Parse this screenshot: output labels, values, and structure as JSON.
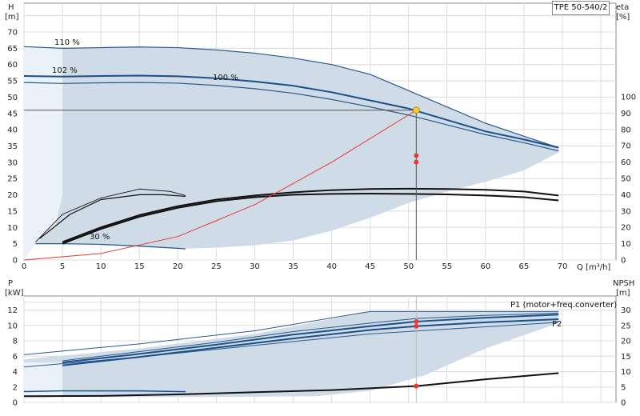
{
  "chart_data": [
    {
      "type": "line",
      "title": "TPE 50-540/2",
      "xlabel": "Q [m³/h]",
      "ylabel_left": "H",
      "ylabel_left_unit": "[m]",
      "ylabel_right": "eta",
      "ylabel_right_unit": "[%]",
      "xlim": [
        0,
        70
      ],
      "ylim_left": [
        0,
        75
      ],
      "ylim_right": [
        0,
        100
      ],
      "x_ticks": [
        0,
        5,
        10,
        15,
        20,
        25,
        30,
        35,
        40,
        45,
        50,
        55,
        60,
        65,
        70
      ],
      "y_ticks_left": [
        0,
        5,
        10,
        15,
        20,
        25,
        30,
        35,
        40,
        45,
        50,
        55,
        60,
        65,
        70
      ],
      "y_ticks_right": [
        0,
        10,
        20,
        30,
        40,
        50,
        60,
        70,
        80,
        90,
        100
      ],
      "grid": true,
      "curve_labels": [
        "110 %",
        "102 %",
        "100 %",
        "30 %"
      ],
      "series": [
        {
          "name": "110 %",
          "axis": "left",
          "x": [
            0,
            5,
            10,
            15,
            20,
            25,
            30,
            35,
            40,
            45,
            50,
            55,
            60,
            65,
            69.5
          ],
          "y": [
            65.5,
            65,
            65.2,
            65.4,
            65.2,
            64.5,
            63.5,
            62,
            60,
            57,
            52,
            47,
            42,
            38,
            34.5
          ]
        },
        {
          "name": "102 %",
          "axis": "left",
          "x": [
            0,
            5,
            10,
            15,
            20,
            25,
            30,
            35,
            40,
            45,
            50,
            55,
            60,
            65,
            69.5
          ],
          "y": [
            56.5,
            56.3,
            56.5,
            56.6,
            56.4,
            55.8,
            54.8,
            53.5,
            51.5,
            49,
            46.5,
            43,
            39.5,
            37,
            34.5
          ]
        },
        {
          "name": "100 %",
          "axis": "left",
          "x": [
            0,
            5,
            10,
            15,
            20,
            25,
            30,
            35,
            40,
            45,
            50,
            55,
            60,
            65,
            69.5
          ],
          "y": [
            54.5,
            54.2,
            54.4,
            54.5,
            54.3,
            53.6,
            52.6,
            51.2,
            49.3,
            47,
            44.5,
            41.5,
            38.5,
            36,
            33.5
          ]
        },
        {
          "name": "30 %",
          "axis": "left",
          "x": [
            1.5,
            5,
            10,
            15,
            20,
            21
          ],
          "y": [
            5,
            5,
            4.8,
            4.3,
            3.6,
            3.4
          ]
        },
        {
          "name": "system curve",
          "axis": "left",
          "x": [
            0,
            10,
            20,
            30,
            40,
            51
          ],
          "y": [
            0,
            2,
            7.2,
            17,
            30,
            46
          ]
        },
        {
          "name": "eta 110 %",
          "axis": "right",
          "x": [
            5,
            10,
            15,
            20,
            25,
            30,
            35,
            40,
            45,
            50,
            55,
            60,
            65,
            69.5
          ],
          "y": [
            11,
            20,
            27.5,
            33,
            37,
            39.5,
            41.5,
            42.8,
            43.5,
            43.7,
            43.5,
            43,
            42,
            39.5
          ]
        },
        {
          "name": "eta 100 %",
          "axis": "right",
          "x": [
            5,
            10,
            15,
            20,
            25,
            30,
            35,
            40,
            45,
            50,
            55,
            60,
            65,
            69.5
          ],
          "y": [
            10,
            19,
            26.5,
            32,
            36,
            38.5,
            40,
            40.5,
            40.7,
            40.5,
            40.2,
            39.5,
            38.5,
            36.5
          ]
        },
        {
          "name": "eta 30 %",
          "axis": "right",
          "x": [
            1.5,
            5,
            10,
            15,
            19,
            21
          ],
          "y": [
            11,
            28,
            38,
            43.5,
            42,
            39.5
          ]
        }
      ],
      "duty_point": {
        "Q": 51,
        "H": 46
      },
      "markers": [
        {
          "Q": 51,
          "eta": 64
        },
        {
          "Q": 51,
          "eta": 60
        }
      ]
    },
    {
      "type": "line",
      "xlabel": "",
      "ylabel_left": "P",
      "ylabel_left_unit": "[kW]",
      "ylabel_right": "NPSH",
      "ylabel_right_unit": "[m]",
      "xlim": [
        0,
        70
      ],
      "ylim_left": [
        0,
        14
      ],
      "ylim_right": [
        0,
        35
      ],
      "y_ticks_left": [
        0,
        2,
        4,
        6,
        8,
        10,
        12
      ],
      "y_ticks_right": [
        0,
        5,
        10,
        15,
        20,
        25,
        30
      ],
      "grid": true,
      "series_labels": [
        "P1 (motor+freq.converter)",
        "P2"
      ],
      "series": [
        {
          "name": "P1 (motor+freq.converter)",
          "axis": "left",
          "x": [
            5,
            15,
            25,
            35,
            45,
            51,
            60,
            69.5
          ],
          "y": [
            5.2,
            6.3,
            7.5,
            8.8,
            9.9,
            10.5,
            11,
            11.4
          ]
        },
        {
          "name": "P2",
          "axis": "left",
          "x": [
            5,
            15,
            25,
            35,
            45,
            51,
            60,
            69.5
          ],
          "y": [
            4.8,
            5.9,
            7.1,
            8.3,
            9.4,
            9.9,
            10.4,
            10.8
          ]
        },
        {
          "name": "NPSH",
          "axis": "right",
          "x": [
            0,
            10,
            20,
            30,
            40,
            51,
            60,
            69.5
          ],
          "y": [
            2,
            2.1,
            2.6,
            3.3,
            4,
            5.3,
            7.5,
            9.5
          ]
        }
      ],
      "markers": [
        {
          "Q": 51,
          "P": 10.5
        },
        {
          "Q": 51,
          "P": 9.9
        },
        {
          "Q": 51,
          "NPSH": 5.3
        }
      ]
    }
  ]
}
